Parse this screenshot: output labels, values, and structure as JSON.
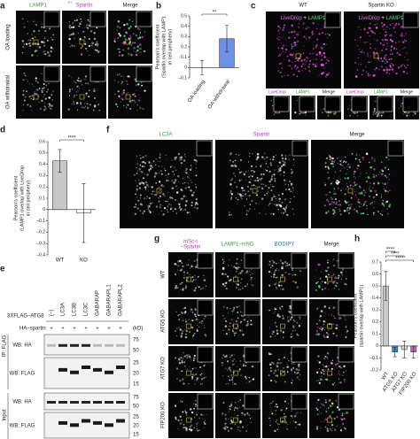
{
  "chart_data": [
    {
      "type": "bar",
      "panel": "b",
      "y_label": [
        "Pearson's coefficient",
        "(Spartin overlap with LAMP1",
        "in cell periphery)"
      ],
      "categories": [
        "OA loading",
        "OA withdrawal"
      ],
      "values": [
        0.0,
        0.28
      ],
      "errors": [
        0.07,
        0.13
      ],
      "colors": [
        "#c8c8c8",
        "#6d8fe6"
      ],
      "ylim": [
        -0.1,
        0.5
      ],
      "yticks": [
        {
          "value": -0.1,
          "label": "–0.1"
        },
        0,
        0.1,
        0.2,
        0.3,
        0.4,
        0.5
      ],
      "significance": [
        "**"
      ]
    },
    {
      "type": "bar",
      "panel": "d",
      "y_label": [
        "Pearson's coefficient",
        "(LAMP1 overlap with LiveDrop",
        "in cell periphery)"
      ],
      "categories": [
        "WT",
        "KO"
      ],
      "values": [
        0.43,
        -0.03
      ],
      "errors": [
        0.1,
        0.26
      ],
      "colors": [
        "#c8c8c8",
        "#ffffff"
      ],
      "ylim": [
        -0.4,
        0.6
      ],
      "yticks": [
        {
          "value": -0.4,
          "label": "–0.4"
        },
        {
          "value": -0.3,
          "label": "–0.3"
        },
        {
          "value": -0.2,
          "label": "–0.2"
        },
        {
          "value": -0.1,
          "label": "–0.1"
        },
        0,
        0.1,
        0.2,
        0.3,
        0.4,
        0.5,
        0.6
      ],
      "significance": [
        "****"
      ]
    },
    {
      "type": "bar",
      "panel": "h",
      "y_label": [
        "Pearson's coefficient",
        "(spartin overlap with LAMP1)"
      ],
      "categories": [
        "WT",
        "ATG5 KO",
        "ATG7 KO",
        "FIP200 KO"
      ],
      "values": [
        0.5,
        -0.05,
        -0.03,
        -0.05
      ],
      "errors": [
        0.12,
        0.04,
        0.07,
        0.05
      ],
      "colors": [
        "#c8c8c8",
        "#2f8fc4",
        "#d9d9d9",
        "#b36bb8"
      ],
      "ylim": [
        -0.2,
        0.7
      ],
      "yticks": [
        {
          "value": -0.2,
          "label": "–0.2"
        },
        {
          "value": -0.1,
          "label": "–0.1"
        },
        0,
        0.1,
        0.2,
        0.3,
        0.4,
        0.5,
        0.6,
        0.7
      ],
      "significance": [
        "****",
        "****",
        "****"
      ]
    }
  ],
  "panels": {
    "a": {
      "letter": "a",
      "channels": [
        "LAMP1",
        "Spartin",
        "Merge"
      ],
      "channel_prefix": "EI",
      "rows": [
        "OA loading",
        "OA withdrawal"
      ]
    },
    "c": {
      "letter": "c",
      "columns": [
        "WT",
        "Spartin KO"
      ],
      "overlay": [
        "LiveDrop",
        " + ",
        "LAMP1"
      ],
      "strip": [
        "LiveDrop",
        "LAMP1",
        "Merge"
      ]
    },
    "e": {
      "letter": "e",
      "construct": "3XFLAG–ATG8",
      "lanes": [
        "(–)",
        "LC3A",
        "LC3B",
        "LC3C",
        "GABARAP",
        "GABARAPL1",
        "GABARAPL2"
      ],
      "ha_label": "HA–spartin",
      "ha_marks": [
        "+",
        "+",
        "+",
        "+",
        "+",
        "+",
        "+"
      ],
      "kd": "(kD)",
      "blots": [
        {
          "label": "WB: HA",
          "markers": [
            "75",
            "50"
          ]
        },
        {
          "label": "WB: FLAG",
          "markers": [
            "25",
            "20",
            "15"
          ]
        },
        {
          "label": "WB: HA",
          "markers": [
            "75",
            "50"
          ]
        },
        {
          "label": "WB: FLAG",
          "markers": [
            "25",
            "20",
            "15"
          ]
        }
      ],
      "groups": [
        "IP: FLAG",
        "Input"
      ]
    },
    "f": {
      "letter": "f",
      "channels": [
        "LC3A",
        "Spartin",
        "Merge"
      ]
    },
    "g": {
      "letter": "g",
      "channels": [
        [
          "mSc-I",
          "–Spartin"
        ],
        [
          "LAMP1–mNG"
        ],
        [
          "BODIPY"
        ],
        [
          "Merge"
        ]
      ],
      "rows": [
        "WT",
        "ATG5 KO",
        "ATG7 KO",
        "FIP200 KO"
      ]
    }
  }
}
